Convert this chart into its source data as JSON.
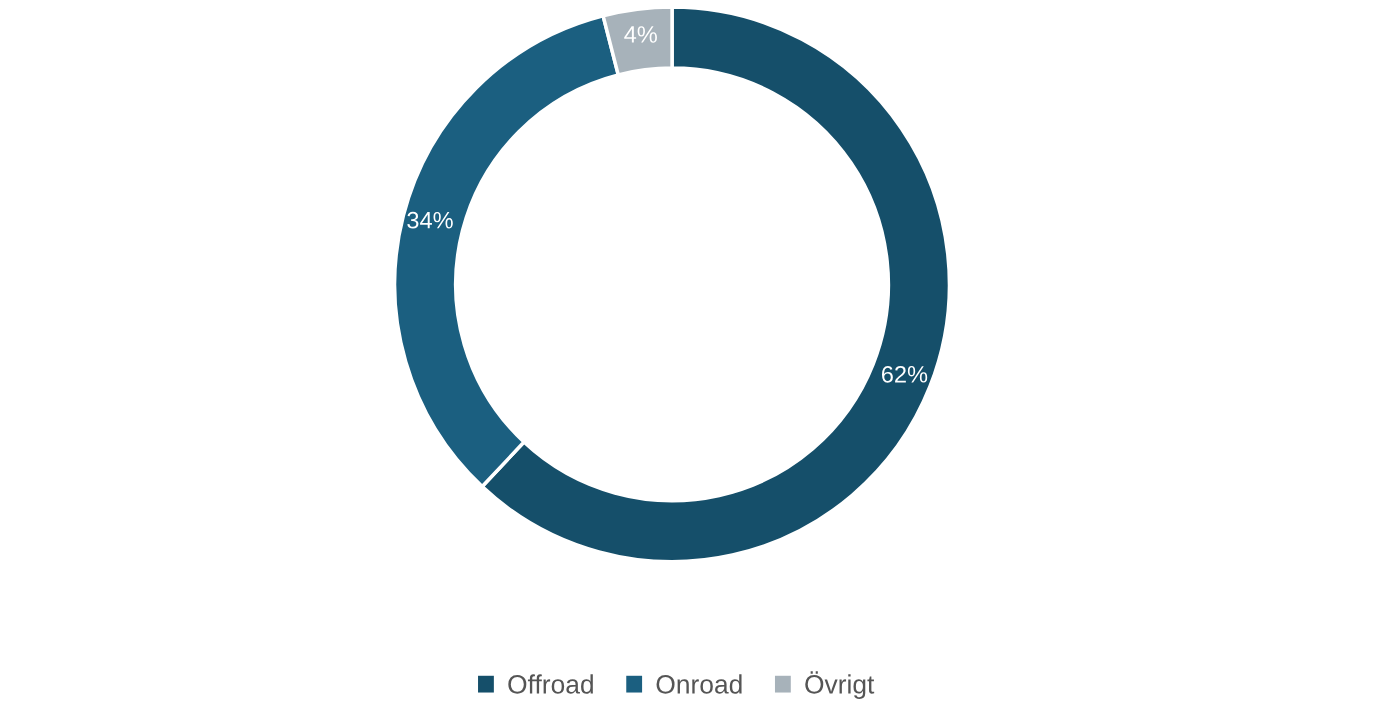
{
  "chart_data": {
    "type": "donut",
    "categories": [
      "Offroad",
      "Onroad",
      "Övrigt"
    ],
    "values": [
      62,
      34,
      4
    ],
    "colors": [
      "#154f6a",
      "#1b5f80",
      "#a7b2ba"
    ],
    "value_labels": [
      "62%",
      "34%",
      "4%"
    ],
    "legend": "bottom"
  }
}
